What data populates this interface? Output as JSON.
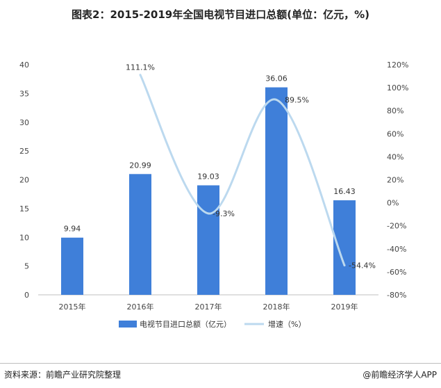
{
  "title": "图表2：2015-2019年全国电视节目进口总额(单位：亿元，%)",
  "source": "资料来源：前瞻产业研究院整理",
  "credit": "@前瞻经济学人APP",
  "colors": {
    "bar": "#3f7fd9",
    "line": "#bcd9ef"
  },
  "chart_data": {
    "type": "bar",
    "categories": [
      "2015年",
      "2016年",
      "2017年",
      "2018年",
      "2019年"
    ],
    "series": [
      {
        "name": "电视节目进口总额（亿元）",
        "type": "bar",
        "axis": "left",
        "values": [
          9.94,
          20.99,
          19.03,
          36.06,
          16.43
        ],
        "labels": [
          "9.94",
          "20.99",
          "19.03",
          "36.06",
          "16.43"
        ]
      },
      {
        "name": "增速（%）",
        "type": "line",
        "axis": "right",
        "values": [
          null,
          111.1,
          -9.3,
          89.5,
          -54.4
        ],
        "labels": [
          "",
          "111.1%",
          "-9.3%",
          "89.5%",
          "-54.4%"
        ]
      }
    ],
    "ylim_left": [
      0,
      40
    ],
    "yticks_left": [
      "0",
      "5",
      "10",
      "15",
      "20",
      "25",
      "30",
      "35",
      "40"
    ],
    "ylim_right": [
      -80,
      120
    ],
    "yticks_right": [
      "-80%",
      "-60%",
      "-40%",
      "-20%",
      "0%",
      "20%",
      "40%",
      "60%",
      "80%",
      "100%",
      "120%"
    ],
    "legend_position": "bottom",
    "grid": false
  }
}
